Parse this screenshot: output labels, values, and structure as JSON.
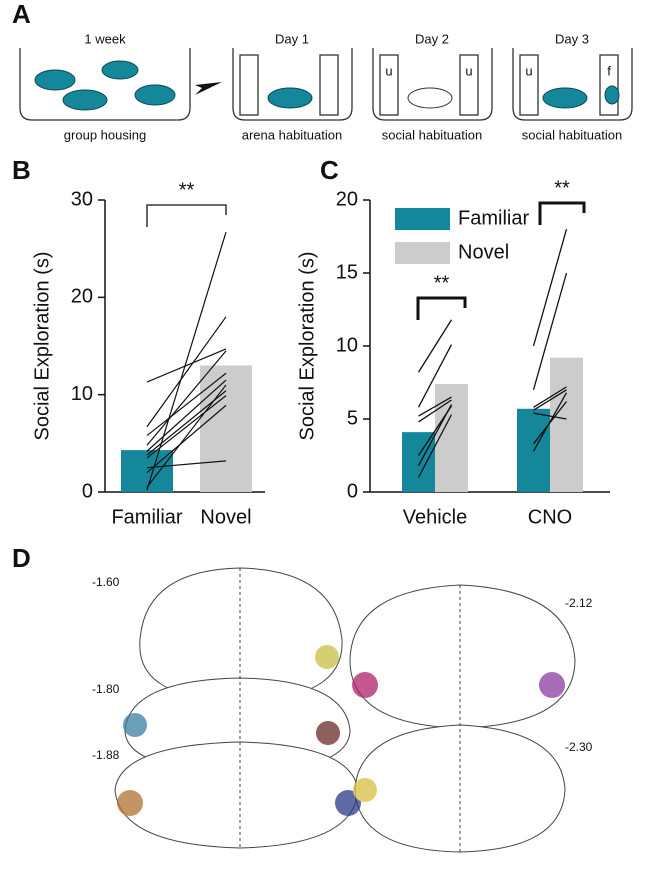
{
  "panel_labels": [
    "A",
    "B",
    "C",
    "D"
  ],
  "schematic": {
    "stages": [
      {
        "top": "1 week",
        "bottom": "group housing"
      },
      {
        "top": "Day 1",
        "bottom": "arena habituation"
      },
      {
        "top": "Day 2",
        "bottom": "social habituation"
      },
      {
        "top": "Day 3",
        "bottom": "social habituation"
      }
    ],
    "cup_labels": [
      "u",
      "u",
      "u",
      "f"
    ]
  },
  "atlas": {
    "levels": [
      "-1.60",
      "-1.80",
      "-1.88",
      "-2.12",
      "-2.30"
    ]
  },
  "chart_data": [
    {
      "type": "bar",
      "y_label": "Social Exploration (s)",
      "categories": [
        "Familiar",
        "Novel"
      ],
      "values": [
        4.3,
        13.0
      ],
      "colors": [
        "#14879a",
        "#cccccc"
      ],
      "ylim": [
        0,
        30
      ],
      "yticks": [
        0,
        10,
        20,
        30
      ],
      "significance": [
        "**"
      ],
      "subjects": [
        [
          11.3,
          14.7
        ],
        [
          6.7,
          18.0
        ],
        [
          5.8,
          12.2
        ],
        [
          4.8,
          14.5
        ],
        [
          4.2,
          11.5
        ],
        [
          3.5,
          9.9
        ],
        [
          2.5,
          3.2
        ],
        [
          2.0,
          8.9
        ],
        [
          0.5,
          11.0
        ],
        [
          0.2,
          26.7
        ],
        [
          3.8,
          10.4
        ]
      ]
    },
    {
      "type": "bar",
      "y_label": "Social Exploration (s)",
      "categories": [
        "Vehicle",
        "CNO"
      ],
      "series": [
        {
          "name": "Familiar",
          "color": "#14879a",
          "values": [
            4.1,
            5.7
          ]
        },
        {
          "name": "Novel",
          "color": "#cccccc",
          "values": [
            7.4,
            9.2
          ]
        }
      ],
      "ylim": [
        0,
        20
      ],
      "yticks": [
        0,
        5,
        10,
        15,
        20
      ],
      "significance": [
        "**",
        "**"
      ],
      "subjects": [
        [
          [
            8.2,
            11.8
          ],
          [
            5.8,
            10.1
          ],
          [
            5.2,
            6.5
          ],
          [
            4.8,
            6.3
          ],
          [
            2.5,
            5.9
          ],
          [
            1.8,
            6.0
          ],
          [
            1.0,
            5.3
          ]
        ],
        [
          [
            10.0,
            18.0
          ],
          [
            7.0,
            15.0
          ],
          [
            5.8,
            7.2
          ],
          [
            5.6,
            7.0
          ],
          [
            2.8,
            6.8
          ],
          [
            3.3,
            6.2
          ],
          [
            5.4,
            5.0
          ]
        ]
      ]
    }
  ]
}
